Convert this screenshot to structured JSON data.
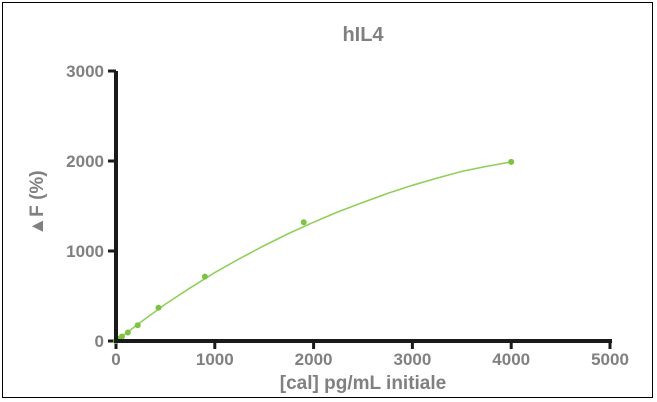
{
  "chart_data": {
    "type": "scatter",
    "title": "hIL4",
    "xlabel": "[cal] pg/mL initiale",
    "ylabel": "▲F (%)",
    "xlim": [
      0,
      5000
    ],
    "ylim": [
      0,
      3000
    ],
    "xticks": [
      0,
      1000,
      2000,
      3000,
      4000,
      5000
    ],
    "yticks": [
      0,
      1000,
      2000,
      3000
    ],
    "xtick_labels": [
      "0",
      "1000",
      "2000",
      "3000",
      "4000",
      "5000"
    ],
    "ytick_labels": [
      "0",
      "1000",
      "2000",
      "3000"
    ],
    "grid": false,
    "points": {
      "x": [
        0,
        15,
        30,
        60,
        120,
        220,
        430,
        900,
        1900,
        4000
      ],
      "y": [
        0,
        12,
        25,
        50,
        95,
        175,
        370,
        715,
        1320,
        1990
      ]
    },
    "fit_curve": {
      "x": [
        0,
        250,
        500,
        750,
        1000,
        1250,
        1500,
        1750,
        2000,
        2250,
        2500,
        2750,
        3000,
        3250,
        3500,
        3750,
        4000
      ],
      "y": [
        0,
        210,
        410,
        590,
        760,
        915,
        1060,
        1195,
        1320,
        1435,
        1540,
        1640,
        1730,
        1810,
        1885,
        1940,
        1990
      ]
    },
    "colors": {
      "points": "#7dc242",
      "curve": "#8fd05a",
      "axis": "#1a1a1a",
      "text": "#808080"
    }
  }
}
